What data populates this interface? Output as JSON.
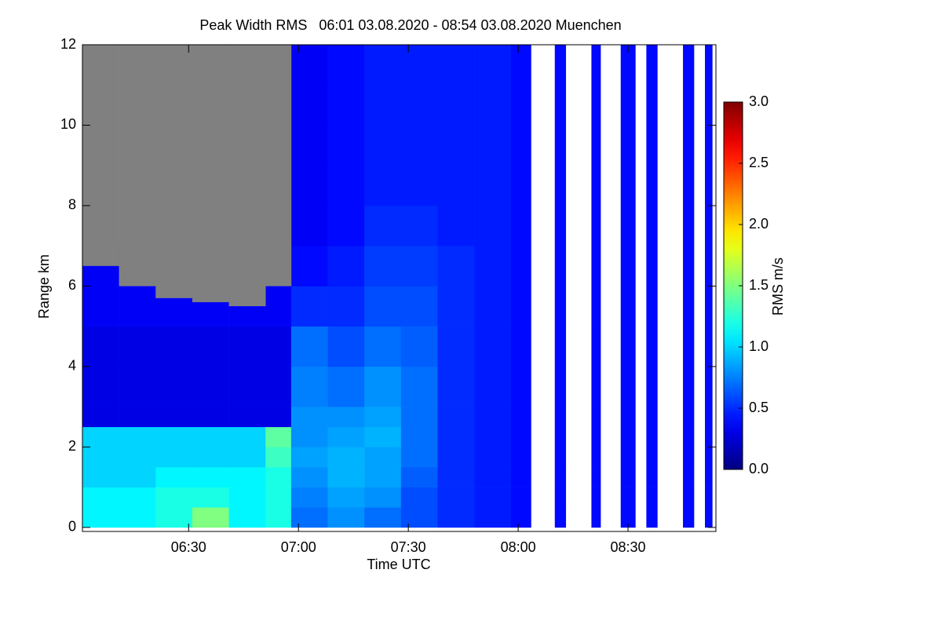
{
  "chart_data": {
    "type": "heatmap",
    "title": "Peak Width RMS   06:01 03.08.2020 - 08:54 03.08.2020 Muenchen",
    "x_label": "Time UTC",
    "y_label": "Range km",
    "colorbar_label": "RMS m/s",
    "xlim": [
      361,
      534
    ],
    "xticks": [
      {
        "value": 390,
        "label": "06:30"
      },
      {
        "value": 420,
        "label": "07:00"
      },
      {
        "value": 450,
        "label": "07:30"
      },
      {
        "value": 480,
        "label": "08:00"
      },
      {
        "value": 510,
        "label": "08:30"
      }
    ],
    "ylim": [
      -0.1,
      12
    ],
    "yticks": [
      0,
      2,
      4,
      6,
      8,
      10,
      12
    ],
    "zlim": [
      0,
      3
    ],
    "zticks": [
      {
        "value": 0,
        "label": "0.0"
      },
      {
        "value": 0.5,
        "label": "0.5"
      },
      {
        "value": 1,
        "label": "1.0"
      },
      {
        "value": 1.5,
        "label": "1.5"
      },
      {
        "value": 2,
        "label": "2.0"
      },
      {
        "value": 2.5,
        "label": "2.5"
      },
      {
        "value": 3,
        "label": "3.0"
      }
    ],
    "colormap": "jet",
    "mask_color": "#808080",
    "x_edges": [
      361,
      371,
      381,
      391,
      401,
      411,
      418,
      428,
      438,
      448,
      458,
      468,
      478,
      483.5,
      490,
      493,
      500,
      502.5,
      508,
      512,
      515,
      518,
      525,
      528,
      531,
      533
    ],
    "y_edges": [
      0,
      0.5,
      1,
      1.5,
      2,
      2.5,
      3,
      4,
      5,
      6,
      7,
      8,
      9,
      10,
      11,
      12
    ],
    "signal_top": [
      6.5,
      6.0,
      5.7,
      5.6,
      5.5,
      6.0,
      12,
      12,
      12,
      12,
      12,
      12,
      12,
      null,
      12,
      null,
      12,
      null,
      12,
      null,
      12,
      null,
      12,
      null,
      12
    ],
    "z": [
      [
        1.1,
        1.1,
        1.2,
        1.5,
        1.1,
        1.2,
        0.7,
        0.8,
        0.7,
        0.6,
        0.5,
        0.45,
        0.4,
        null,
        0.4,
        null,
        0.4,
        null,
        0.4,
        null,
        0.4,
        null,
        0.4,
        null,
        0.4
      ],
      [
        1.1,
        1.1,
        1.2,
        1.2,
        1.1,
        1.2,
        0.75,
        0.85,
        0.8,
        0.6,
        0.5,
        0.45,
        0.4,
        null,
        0.4,
        null,
        0.4,
        null,
        0.4,
        null,
        0.4,
        null,
        0.4,
        null,
        0.4
      ],
      [
        1.0,
        1.0,
        1.1,
        1.1,
        1.1,
        1.2,
        0.8,
        0.9,
        0.85,
        0.65,
        0.5,
        0.45,
        0.4,
        null,
        0.4,
        null,
        0.4,
        null,
        0.4,
        null,
        0.4,
        null,
        0.4,
        null,
        0.4
      ],
      [
        1.0,
        1.0,
        1.0,
        1.0,
        1.0,
        1.3,
        0.85,
        0.9,
        0.85,
        0.7,
        0.5,
        0.45,
        0.4,
        null,
        0.4,
        null,
        0.4,
        null,
        0.4,
        null,
        0.4,
        null,
        0.4,
        null,
        0.4
      ],
      [
        1.0,
        1.0,
        1.0,
        1.0,
        1.0,
        1.4,
        0.8,
        0.85,
        0.9,
        0.7,
        0.5,
        0.45,
        0.4,
        null,
        0.4,
        null,
        0.4,
        null,
        0.4,
        null,
        0.4,
        null,
        0.4,
        null,
        0.4
      ],
      [
        0.3,
        0.3,
        0.3,
        0.3,
        0.3,
        0.3,
        0.8,
        0.8,
        0.85,
        0.7,
        0.5,
        0.45,
        0.4,
        null,
        0.4,
        null,
        0.4,
        null,
        0.4,
        null,
        0.4,
        null,
        0.4,
        null,
        0.4
      ],
      [
        0.3,
        0.3,
        0.3,
        0.3,
        0.3,
        0.3,
        0.75,
        0.7,
        0.8,
        0.7,
        0.5,
        0.45,
        0.4,
        null,
        0.4,
        null,
        0.4,
        null,
        0.4,
        null,
        0.4,
        null,
        0.4,
        null,
        0.4
      ],
      [
        0.3,
        0.3,
        0.3,
        0.3,
        0.3,
        0.3,
        0.7,
        0.6,
        0.7,
        0.65,
        0.5,
        0.45,
        0.4,
        null,
        0.4,
        null,
        0.4,
        null,
        0.4,
        null,
        0.4,
        null,
        0.4,
        null,
        0.4
      ],
      [
        0.35,
        0.35,
        0.35,
        0.35,
        0.35,
        0.35,
        0.5,
        0.5,
        0.6,
        0.6,
        0.5,
        0.45,
        0.4,
        null,
        0.4,
        null,
        0.4,
        null,
        0.4,
        null,
        0.4,
        null,
        0.4,
        null,
        0.4
      ],
      [
        0.35,
        null,
        null,
        null,
        null,
        null,
        0.4,
        0.45,
        0.55,
        0.55,
        0.5,
        0.45,
        0.4,
        null,
        0.4,
        null,
        0.4,
        null,
        0.4,
        null,
        0.4,
        null,
        0.4,
        null,
        0.4
      ],
      [
        null,
        null,
        null,
        null,
        null,
        null,
        0.35,
        0.4,
        0.5,
        0.5,
        0.45,
        0.45,
        0.4,
        null,
        0.4,
        null,
        0.4,
        null,
        0.4,
        null,
        0.4,
        null,
        0.4,
        null,
        0.4
      ],
      [
        null,
        null,
        null,
        null,
        null,
        null,
        0.35,
        0.4,
        0.45,
        0.45,
        0.45,
        0.45,
        0.4,
        null,
        0.4,
        null,
        0.4,
        null,
        0.4,
        null,
        0.4,
        null,
        0.4,
        null,
        0.4
      ],
      [
        null,
        null,
        null,
        null,
        null,
        null,
        0.35,
        0.4,
        0.45,
        0.45,
        0.45,
        0.45,
        0.4,
        null,
        0.4,
        null,
        0.4,
        null,
        0.4,
        null,
        0.4,
        null,
        0.4,
        null,
        0.4
      ],
      [
        null,
        null,
        null,
        null,
        null,
        null,
        0.35,
        0.4,
        0.45,
        0.45,
        0.45,
        0.45,
        0.4,
        null,
        0.4,
        null,
        0.4,
        null,
        0.4,
        null,
        0.4,
        null,
        0.4,
        null,
        0.4
      ],
      [
        null,
        null,
        null,
        null,
        null,
        null,
        0.35,
        0.4,
        0.45,
        0.45,
        0.45,
        0.45,
        0.4,
        null,
        0.4,
        null,
        0.4,
        null,
        0.4,
        null,
        0.4,
        null,
        0.4,
        null,
        0.4
      ]
    ]
  }
}
